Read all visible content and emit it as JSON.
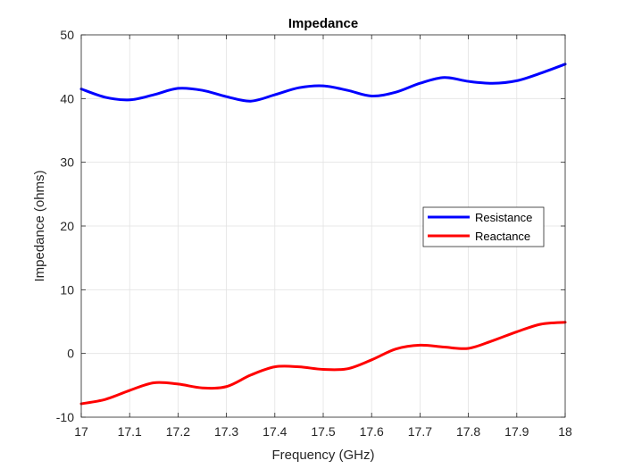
{
  "chart_data": {
    "type": "line",
    "title": "Impedance",
    "xlabel": "Frequency (GHz)",
    "ylabel": "Impedance (ohms)",
    "xlim": [
      17,
      18
    ],
    "ylim": [
      -10,
      50
    ],
    "xticks": [
      17,
      17.1,
      17.2,
      17.3,
      17.4,
      17.5,
      17.6,
      17.7,
      17.8,
      17.9,
      18
    ],
    "xtick_labels": [
      "17",
      "17.1",
      "17.2",
      "17.3",
      "17.4",
      "17.5",
      "17.6",
      "17.7",
      "17.8",
      "17.9",
      "18"
    ],
    "yticks": [
      -10,
      0,
      10,
      20,
      30,
      40,
      50
    ],
    "ytick_labels": [
      "-10",
      "0",
      "10",
      "20",
      "30",
      "40",
      "50"
    ],
    "grid": true,
    "legend_position": "right",
    "series": [
      {
        "name": "Resistance",
        "color": "#0000ff",
        "x": [
          17.0,
          17.05,
          17.1,
          17.15,
          17.2,
          17.25,
          17.3,
          17.35,
          17.4,
          17.45,
          17.5,
          17.55,
          17.6,
          17.65,
          17.7,
          17.75,
          17.8,
          17.85,
          17.9,
          17.95,
          18.0
        ],
        "values": [
          41.5,
          40.2,
          39.8,
          40.6,
          41.6,
          41.3,
          40.3,
          39.6,
          40.6,
          41.7,
          42.0,
          41.3,
          40.4,
          41.0,
          42.4,
          43.3,
          42.7,
          42.4,
          42.8,
          44.0,
          45.4
        ]
      },
      {
        "name": "Reactance",
        "color": "#ff0000",
        "x": [
          17.0,
          17.05,
          17.1,
          17.15,
          17.2,
          17.25,
          17.3,
          17.35,
          17.4,
          17.45,
          17.5,
          17.55,
          17.6,
          17.65,
          17.7,
          17.75,
          17.8,
          17.85,
          17.9,
          17.95,
          18.0
        ],
        "values": [
          -7.9,
          -7.2,
          -5.8,
          -4.6,
          -4.8,
          -5.4,
          -5.2,
          -3.4,
          -2.1,
          -2.1,
          -2.5,
          -2.4,
          -1.0,
          0.7,
          1.3,
          1.0,
          0.8,
          2.0,
          3.4,
          4.6,
          4.9
        ]
      }
    ]
  }
}
